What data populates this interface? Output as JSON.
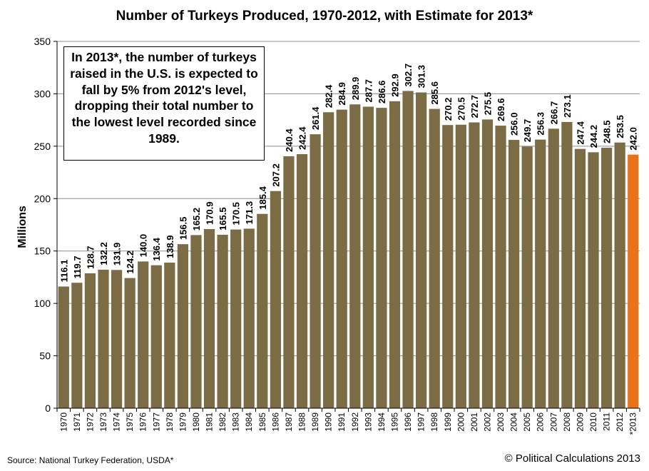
{
  "chart_data": {
    "type": "bar",
    "title": "Number of Turkeys Produced, 1970-2012,  with Estimate for 2013*",
    "ylabel": "Millions",
    "xlabel": "",
    "ylim": [
      0,
      350
    ],
    "yticks": [
      0,
      50,
      100,
      150,
      200,
      250,
      300,
      350
    ],
    "grid": true,
    "categories": [
      "1970",
      "1971",
      "1972",
      "1973",
      "1974",
      "1975",
      "1976",
      "1977",
      "1978",
      "1979",
      "1980",
      "1981",
      "1982",
      "1983",
      "1984",
      "1985",
      "1986",
      "1987",
      "1988",
      "1989",
      "1990",
      "1991",
      "1992",
      "1993",
      "1994",
      "1995",
      "1996",
      "1997",
      "1998",
      "1999",
      "2000",
      "2001",
      "2002",
      "2003",
      "2004",
      "2005",
      "2006",
      "2007",
      "2008",
      "2009",
      "2010",
      "2011",
      "2012",
      "*2013"
    ],
    "values": [
      116.1,
      119.7,
      128.7,
      132.2,
      131.9,
      124.2,
      140.0,
      136.4,
      138.9,
      156.5,
      165.2,
      170.9,
      165.5,
      170.5,
      171.3,
      185.4,
      207.2,
      240.4,
      242.4,
      261.4,
      282.4,
      284.9,
      289.9,
      287.7,
      286.6,
      292.9,
      302.7,
      301.3,
      285.6,
      270.2,
      270.5,
      272.7,
      275.5,
      269.6,
      256.0,
      249.7,
      256.3,
      266.7,
      273.1,
      247.4,
      244.2,
      248.5,
      253.5,
      242.0
    ],
    "value_labels": [
      "116.1",
      "119.7",
      "128.7",
      "132.2",
      "131.9",
      "124.2",
      "140.0",
      "136.4",
      "138.9",
      "156.5",
      "165.2",
      "170.9",
      "165.5",
      "170.5",
      "171.3",
      "185.4",
      "207.2",
      "240.4",
      "242.4",
      "261.4",
      "282.4",
      "284.9",
      "289.9",
      "287.7",
      "286.6",
      "292.9",
      "302.7",
      "301.3",
      "285.6",
      "270.2",
      "270.5",
      "272.7",
      "275.5",
      "269.6",
      "256.0",
      "249.7",
      "256.3",
      "266.7",
      "273.1",
      "247.4",
      "244.2",
      "248.5",
      "253.5",
      "242.0"
    ],
    "annotation": "In 2013*, the number of turkeys raised in the U.S. is expected to fall by 5% from 2012's level, dropping their total number to the lowest level recorded since 1989.",
    "source": "Source: National Turkey Federation, USDA*",
    "copyright": "© Political Calculations 2013",
    "colors": {
      "bar": "#7b6c45",
      "estimate_bar": "#e8731a",
      "grid": "#8c8c8c"
    }
  }
}
